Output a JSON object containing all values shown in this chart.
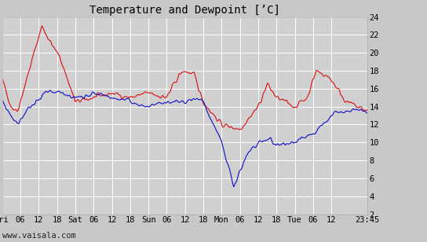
{
  "title": "Temperature and Dewpoint [’C]",
  "background_color": "#c8c8c8",
  "plot_bg_color": "#d0d0d0",
  "grid_color": "#ffffff",
  "temp_color": "#dd0000",
  "dew_color": "#0000cc",
  "ylim": [
    2,
    24
  ],
  "yticks": [
    2,
    4,
    6,
    8,
    10,
    12,
    14,
    16,
    18,
    20,
    22,
    24
  ],
  "xtick_labels": [
    "Fri",
    "06",
    "12",
    "18",
    "Sat",
    "06",
    "12",
    "18",
    "Sun",
    "06",
    "12",
    "18",
    "Mon",
    "06",
    "12",
    "18",
    "Tue",
    "06",
    "12",
    "23:45"
  ],
  "xtick_pos": [
    0,
    6,
    12,
    18,
    24,
    30,
    36,
    42,
    48,
    54,
    60,
    66,
    72,
    78,
    84,
    90,
    96,
    102,
    108,
    119.75
  ],
  "watermark": "www.vaisala.com",
  "title_fontsize": 10,
  "tick_fontsize": 7.5,
  "watermark_fontsize": 7.5,
  "total_hours": 119.75
}
